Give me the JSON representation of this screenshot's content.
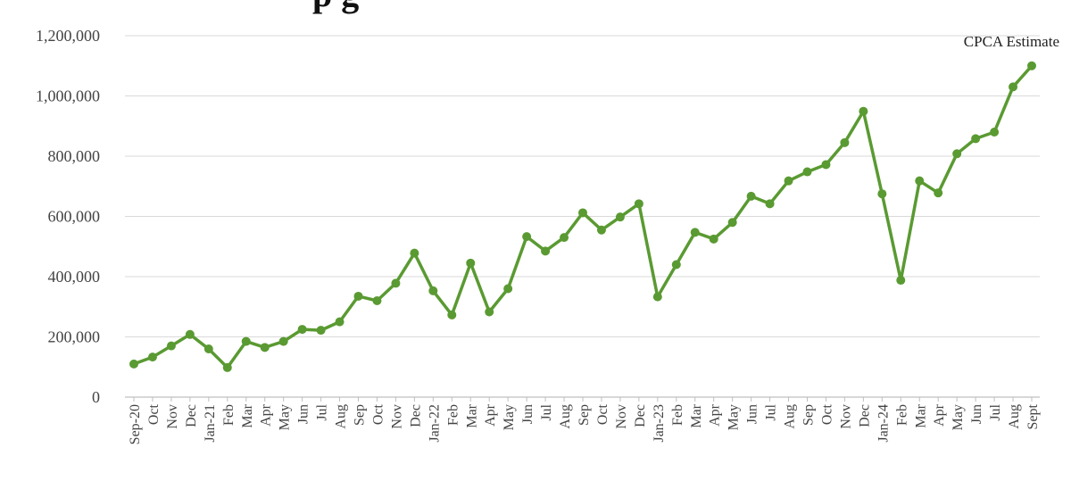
{
  "page": {
    "title_fragment": "p  g"
  },
  "colors": {
    "line": "#5a9a32",
    "grid": "#d9d9d9",
    "axis": "#bfbfbf"
  },
  "chart_data": {
    "type": "line",
    "categories": [
      "Sep-20",
      "Oct",
      "Nov",
      "Dec",
      "Jan-21",
      "Feb",
      "Mar",
      "Apr",
      "May",
      "Jun",
      "Jul",
      "Aug",
      "Sep",
      "Oct",
      "Nov",
      "Dec",
      "Jan-22",
      "Feb",
      "Mar",
      "Apr",
      "May",
      "Jun",
      "Jul",
      "Aug",
      "Sep",
      "Oct",
      "Nov",
      "Dec",
      "Jan-23",
      "Feb",
      "Mar",
      "Apr",
      "May",
      "Jun",
      "Jul",
      "Aug",
      "Sep",
      "Oct",
      "Nov",
      "Dec",
      "Jan-24",
      "Feb",
      "Mar",
      "Apr",
      "May",
      "Jun",
      "Jul",
      "Aug",
      "Sept"
    ],
    "series": [
      {
        "values": [
          110000,
          133000,
          170000,
          208000,
          160000,
          98000,
          185000,
          165000,
          185000,
          225000,
          222000,
          250000,
          335000,
          320000,
          378000,
          478000,
          353000,
          273000,
          445000,
          283000,
          360000,
          533000,
          485000,
          530000,
          612000,
          555000,
          598000,
          642000,
          333000,
          440000,
          547000,
          525000,
          580000,
          667000,
          642000,
          718000,
          748000,
          772000,
          845000,
          949000,
          675000,
          388000,
          718000,
          678000,
          808000,
          858000,
          880000,
          1030000,
          1100000
        ]
      }
    ],
    "ylim": [
      0,
      1200000
    ],
    "yticks": [
      "0",
      "200,000",
      "400,000",
      "600,000",
      "800,000",
      "1,000,000",
      "1,200,000"
    ],
    "yticks_values": [
      0,
      200000,
      400000,
      600000,
      800000,
      1000000,
      1200000
    ],
    "annotation": "CPCA Estimate",
    "grid": true
  }
}
